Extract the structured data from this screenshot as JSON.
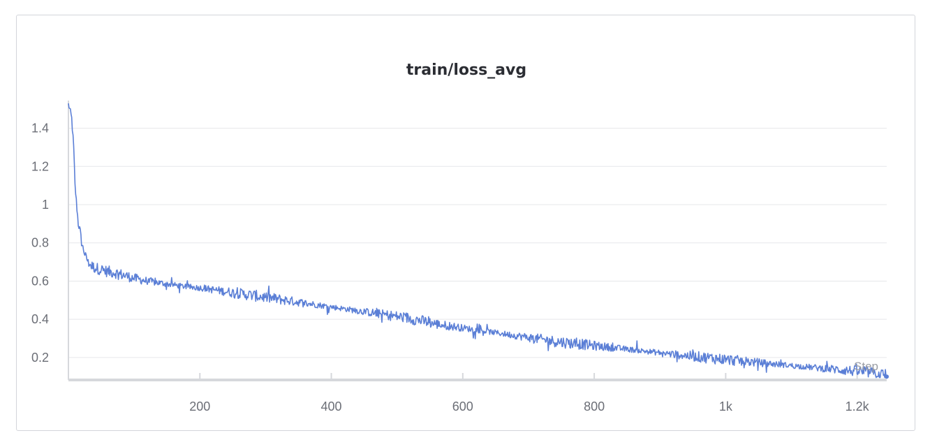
{
  "chart_data": {
    "type": "line",
    "title": "train/loss_avg",
    "xlabel": "Step",
    "ylabel": "",
    "xlim": [
      0,
      1245
    ],
    "ylim": [
      0.09,
      1.53
    ],
    "x_ticks": [
      {
        "value": 200,
        "label": "200"
      },
      {
        "value": 400,
        "label": "400"
      },
      {
        "value": 600,
        "label": "600"
      },
      {
        "value": 800,
        "label": "800"
      },
      {
        "value": 1000,
        "label": "1k"
      },
      {
        "value": 1200,
        "label": "1.2k"
      }
    ],
    "y_ticks": [
      {
        "value": 0.2,
        "label": "0.2"
      },
      {
        "value": 0.4,
        "label": "0.4"
      },
      {
        "value": 0.6,
        "label": "0.6"
      },
      {
        "value": 0.8,
        "label": "0.8"
      },
      {
        "value": 1.0,
        "label": "1"
      },
      {
        "value": 1.2,
        "label": "1.2"
      },
      {
        "value": 1.4,
        "label": "1.4"
      }
    ],
    "grid": true,
    "legend": "none",
    "series": [
      {
        "color": "#5b7fd6",
        "x": [
          0,
          5,
          8,
          10,
          12,
          15,
          18,
          20,
          25,
          30,
          35,
          40,
          45,
          50,
          60,
          70,
          80,
          90,
          100,
          120,
          140,
          160,
          180,
          200,
          220,
          240,
          260,
          280,
          300,
          320,
          340,
          360,
          380,
          400,
          420,
          440,
          460,
          480,
          500,
          520,
          540,
          560,
          580,
          600,
          620,
          640,
          660,
          680,
          700,
          720,
          740,
          760,
          780,
          800,
          820,
          840,
          860,
          880,
          900,
          920,
          940,
          960,
          980,
          1000,
          1020,
          1040,
          1060,
          1080,
          1100,
          1120,
          1140,
          1160,
          1180,
          1200,
          1220,
          1240,
          1245
        ],
        "y": [
          1.53,
          1.45,
          1.3,
          1.1,
          1.02,
          0.9,
          0.86,
          0.8,
          0.74,
          0.7,
          0.68,
          0.67,
          0.665,
          0.66,
          0.65,
          0.645,
          0.635,
          0.625,
          0.615,
          0.6,
          0.59,
          0.58,
          0.57,
          0.565,
          0.555,
          0.545,
          0.535,
          0.525,
          0.515,
          0.505,
          0.495,
          0.485,
          0.475,
          0.465,
          0.455,
          0.445,
          0.435,
          0.425,
          0.415,
          0.405,
          0.39,
          0.375,
          0.365,
          0.355,
          0.345,
          0.335,
          0.325,
          0.315,
          0.305,
          0.295,
          0.285,
          0.277,
          0.27,
          0.262,
          0.255,
          0.247,
          0.24,
          0.232,
          0.225,
          0.217,
          0.21,
          0.203,
          0.197,
          0.19,
          0.183,
          0.177,
          0.17,
          0.164,
          0.158,
          0.152,
          0.146,
          0.14,
          0.134,
          0.128,
          0.122,
          0.11,
          0.1
        ]
      }
    ]
  }
}
